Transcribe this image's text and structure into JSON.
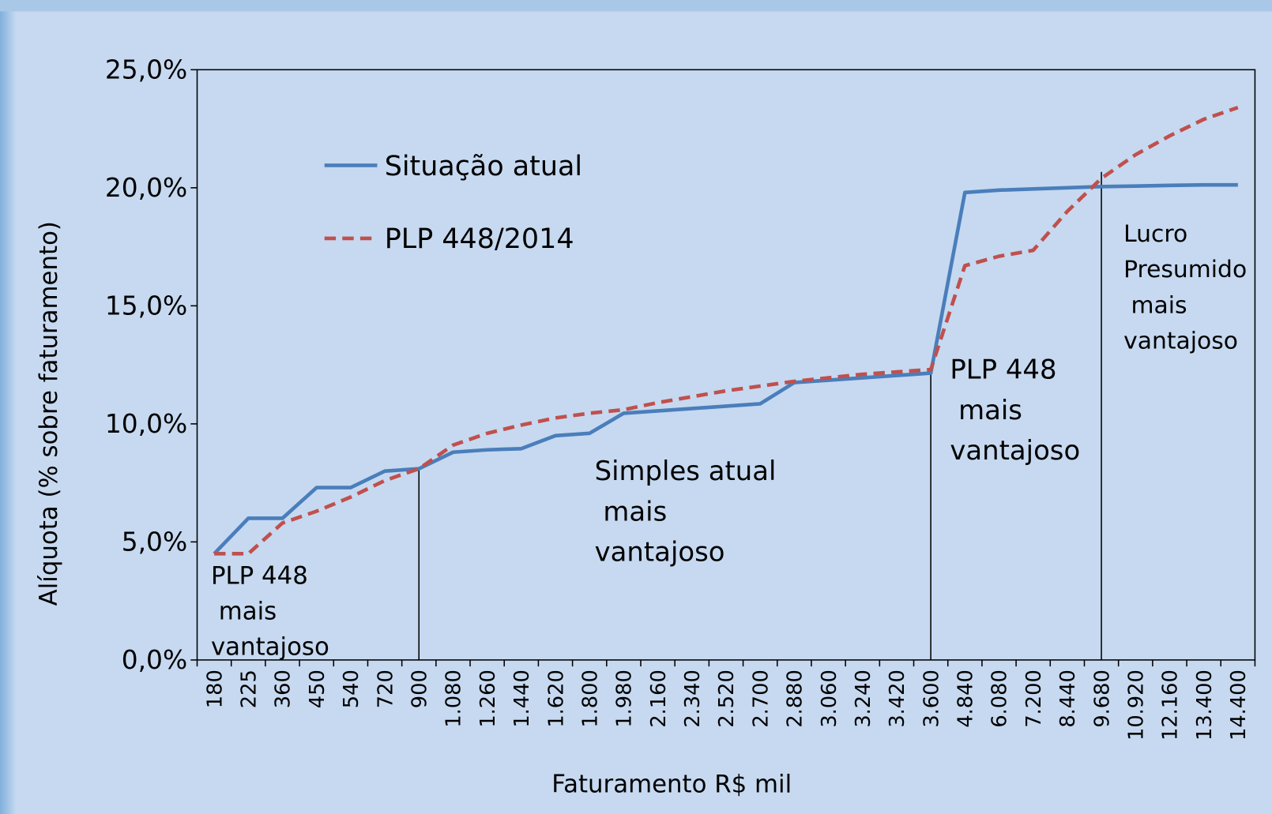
{
  "chart_data": {
    "type": "line",
    "x_label": "Faturamento R$ mil",
    "y_label": "Alíquota (% sobre faturamento)",
    "categories": [
      "180",
      "225",
      "360",
      "450",
      "540",
      "720",
      "900",
      "1.080",
      "1.260",
      "1.440",
      "1.620",
      "1.800",
      "1.980",
      "2.160",
      "2.340",
      "2.520",
      "2.700",
      "2.880",
      "3.060",
      "3.240",
      "3.420",
      "3.600",
      "4.840",
      "6.080",
      "7.200",
      "8.440",
      "9.680",
      "10.920",
      "12.160",
      "13.400",
      "14.400"
    ],
    "series": [
      {
        "name": "Situação atual",
        "color": "#4a7ebb",
        "dashed": false,
        "values": [
          4.5,
          6.0,
          6.0,
          7.3,
          7.3,
          8.0,
          8.1,
          8.8,
          8.9,
          8.95,
          9.5,
          9.6,
          10.45,
          10.55,
          10.65,
          10.75,
          10.85,
          11.75,
          11.85,
          11.95,
          12.05,
          12.15,
          19.8,
          19.9,
          19.95,
          20.0,
          20.05,
          20.07,
          20.1,
          20.12,
          20.12
        ]
      },
      {
        "name": "PLP 448/2014",
        "color": "#c0504d",
        "dashed": true,
        "values": [
          4.5,
          4.5,
          5.8,
          6.3,
          6.9,
          7.6,
          8.1,
          9.1,
          9.6,
          9.95,
          10.25,
          10.45,
          10.6,
          10.9,
          11.15,
          11.4,
          11.6,
          11.8,
          11.95,
          12.1,
          12.2,
          12.3,
          16.7,
          17.1,
          17.35,
          19.0,
          20.4,
          21.4,
          22.2,
          22.9,
          23.4
        ]
      }
    ],
    "ylim": [
      0,
      25
    ],
    "yticks": [
      {
        "value": 0,
        "label": "0,0%"
      },
      {
        "value": 5,
        "label": "5,0%"
      },
      {
        "value": 10,
        "label": "10,0%"
      },
      {
        "value": 15,
        "label": "15,0%"
      },
      {
        "value": 20,
        "label": "20,0%"
      },
      {
        "value": 25,
        "label": "25,0%"
      }
    ],
    "annotations": [
      [
        "PLP 448",
        " mais",
        "vantajoso"
      ],
      [
        "Simples atual",
        " mais",
        "vantajoso"
      ],
      [
        "PLP 448",
        " mais",
        "vantajoso"
      ],
      [
        "Lucro",
        "Presumido",
        " mais",
        "vantajoso"
      ]
    ]
  }
}
